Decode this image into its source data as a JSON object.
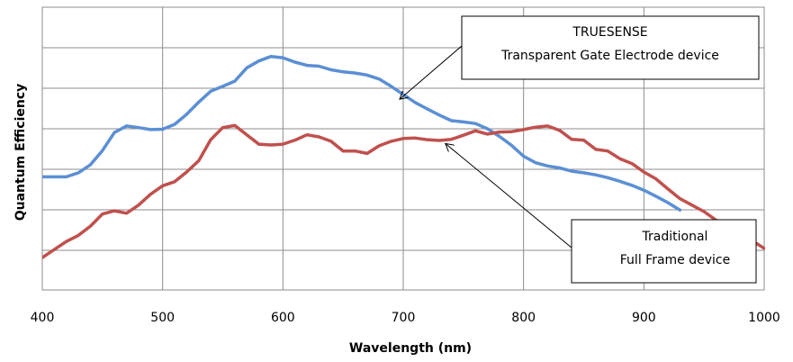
{
  "chart_data": {
    "type": "line",
    "title": "",
    "xlabel": "Wavelength (nm)",
    "ylabel": "Quantum Efficiency",
    "xlim": [
      400,
      1000
    ],
    "xticks": [
      400,
      500,
      600,
      700,
      800,
      900,
      1000
    ],
    "grid": true,
    "y_tick_labels_shown": false,
    "series": [
      {
        "name": "TRUESENSE Transparent Gate Electrode device",
        "color": "#5B8FD4",
        "x": [
          400,
          420,
          430,
          440,
          450,
          460,
          470,
          480,
          490,
          500,
          510,
          520,
          530,
          540,
          550,
          560,
          570,
          580,
          590,
          600,
          610,
          620,
          630,
          640,
          650,
          660,
          670,
          680,
          690,
          700,
          710,
          720,
          730,
          740,
          750,
          760,
          770,
          780,
          790,
          800,
          810,
          820,
          830,
          840,
          850,
          860,
          870,
          880,
          890,
          900,
          910,
          920,
          930
        ],
        "y": [
          28.0,
          28.0,
          29.0,
          31.0,
          34.5,
          39.0,
          40.6,
          40.2,
          39.7,
          39.8,
          41.0,
          43.5,
          46.5,
          49.2,
          50.4,
          51.7,
          55.0,
          56.7,
          57.8,
          57.5,
          56.4,
          55.6,
          55.4,
          54.5,
          54.0,
          53.7,
          53.2,
          52.2,
          50.4,
          48.4,
          46.4,
          44.8,
          43.3,
          41.9,
          41.6,
          41.2,
          39.9,
          38.0,
          35.8,
          33.1,
          31.5,
          30.7,
          30.2,
          29.4,
          29.0,
          28.5,
          27.8,
          26.9,
          25.9,
          24.7,
          23.2,
          21.6,
          19.8
        ]
      },
      {
        "name": "Traditional Full Frame device",
        "color": "#C0504D",
        "x": [
          400,
          410,
          420,
          430,
          440,
          450,
          460,
          470,
          480,
          490,
          500,
          510,
          520,
          530,
          540,
          550,
          560,
          570,
          580,
          590,
          600,
          610,
          620,
          630,
          640,
          650,
          660,
          670,
          680,
          690,
          700,
          710,
          720,
          730,
          740,
          750,
          760,
          770,
          780,
          790,
          800,
          810,
          820,
          830,
          840,
          850,
          860,
          870,
          880,
          890,
          900,
          910,
          920,
          930,
          940,
          950,
          960,
          970,
          980,
          990,
          1000
        ],
        "y": [
          8.0,
          10.0,
          12.0,
          13.5,
          15.8,
          18.8,
          19.6,
          19.0,
          21.0,
          23.7,
          25.8,
          26.8,
          29.2,
          32.0,
          37.2,
          40.2,
          40.7,
          38.4,
          36.1,
          35.9,
          36.1,
          37.1,
          38.4,
          37.9,
          36.8,
          34.4,
          34.4,
          33.8,
          35.7,
          36.8,
          37.5,
          37.6,
          37.2,
          37.0,
          37.3,
          38.3,
          39.4,
          38.6,
          39.1,
          39.2,
          39.7,
          40.3,
          40.6,
          39.5,
          37.3,
          37.1,
          34.8,
          34.4,
          32.5,
          31.3,
          29.2,
          27.5,
          25.0,
          22.6,
          21.0,
          19.4,
          17.3,
          15.7,
          14.0,
          12.2,
          10.3
        ]
      }
    ],
    "annotations": [
      {
        "lines": [
          "TRUESENSE",
          "Transparent Gate Electrode device"
        ],
        "points_to_series": 0,
        "target_x": 697
      },
      {
        "lines": [
          "Traditional",
          "Full Frame device"
        ],
        "points_to_series": 1,
        "target_x": 735
      }
    ]
  }
}
